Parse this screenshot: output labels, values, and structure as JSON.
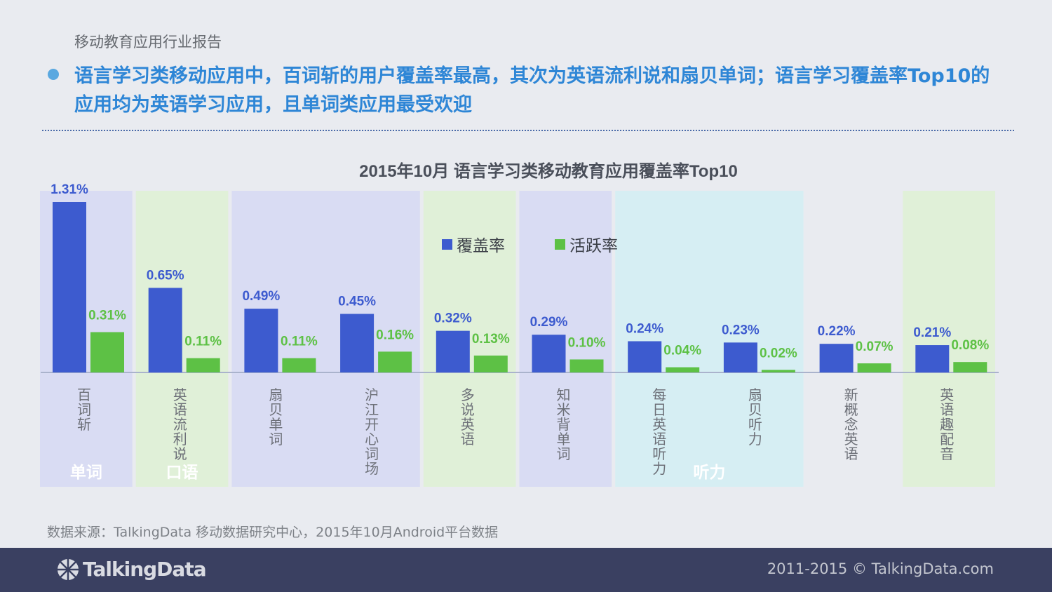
{
  "header": {
    "report_label": "移动教育应用行业报告",
    "headline": "语言学习类移动应用中，百词斩的用户覆盖率最高，其次为英语流利说和扇贝单词；语言学习覆盖率Top10的应用均为英语学习应用，且单词类应用最受欢迎"
  },
  "chart_data": {
    "type": "bar",
    "title": "2015年10月  语言学习类移动教育应用覆盖率Top10",
    "categories": [
      "百词斩",
      "英语流利说",
      "扇贝单词",
      "沪江开心词场",
      "多说英语",
      "知米背单词",
      "每日英语听力",
      "扇贝听力",
      "新概念英语",
      "英语趣配音"
    ],
    "series": [
      {
        "name": "覆盖率",
        "color": "#3d5bcf",
        "values": [
          1.31,
          0.65,
          0.49,
          0.45,
          0.32,
          0.29,
          0.24,
          0.23,
          0.22,
          0.21
        ],
        "labels": [
          "1.31%",
          "0.65%",
          "0.49%",
          "0.45%",
          "0.32%",
          "0.29%",
          "0.24%",
          "0.23%",
          "0.22%",
          "0.21%"
        ]
      },
      {
        "name": "活跃率",
        "color": "#5dc145",
        "values": [
          0.31,
          0.11,
          0.11,
          0.16,
          0.13,
          0.1,
          0.04,
          0.02,
          0.07,
          0.08
        ],
        "labels": [
          "0.31%",
          "0.11%",
          "0.11%",
          "0.16%",
          "0.13%",
          "0.10%",
          "0.04%",
          "0.02%",
          "0.07%",
          "0.08%"
        ]
      }
    ],
    "ylim": [
      0,
      1.31
    ],
    "legend_position": "top-center",
    "groups": [
      {
        "label": "单词",
        "start": 0,
        "end": 0,
        "color": "#d9dcf3"
      },
      {
        "label": "口语",
        "start": 1,
        "end": 1,
        "color": "#e0f0d8"
      },
      {
        "label": "",
        "start": 2,
        "end": 3,
        "color": "#d9dcf3"
      },
      {
        "label": "",
        "start": 4,
        "end": 4,
        "color": "#e0f0d8"
      },
      {
        "label": "",
        "start": 5,
        "end": 5,
        "color": "#d9dcf3"
      },
      {
        "label": "听力",
        "start": 6,
        "end": 7,
        "color": "#d6eef3"
      },
      {
        "label": "",
        "start": 9,
        "end": 9,
        "color": "#e0f0d8"
      }
    ]
  },
  "source_note": "数据来源：TalkingData 移动数据研究中心，2015年10月Android平台数据",
  "footer": {
    "logo_text": "TalkingData",
    "copyright": "2011-2015 © TalkingData.com"
  },
  "colors": {
    "headline": "#2e86d6",
    "footer_bg": "#3a4061",
    "bar_primary": "#3d5bcf",
    "bar_secondary": "#5dc145"
  },
  "icons": {
    "bullet": "circle-bullet-icon",
    "logo": "talkingdata-logo-icon"
  }
}
